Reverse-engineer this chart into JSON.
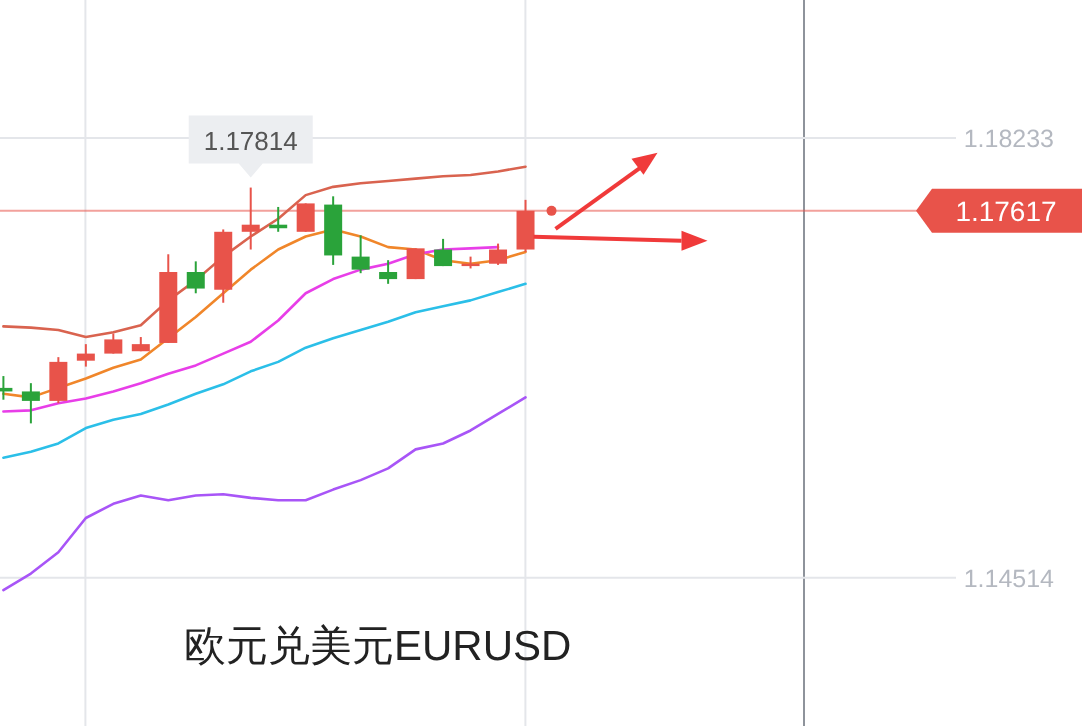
{
  "chart_data": {
    "type": "candlestick",
    "title": "欧元兑美元EURUSD",
    "categories": [
      null,
      null,
      null,
      null,
      null,
      null,
      null,
      null,
      null,
      null,
      null,
      null,
      null,
      null,
      null,
      null,
      null,
      null,
      null,
      null
    ],
    "ohlc": [
      [
        1.1612,
        1.1622,
        1.1602,
        1.1609
      ],
      [
        1.1609,
        1.1616,
        1.1582,
        1.1601
      ],
      [
        1.1601,
        1.1638,
        1.1599,
        1.1634
      ],
      [
        1.1635,
        1.1649,
        1.163,
        1.1641
      ],
      [
        1.1641,
        1.1658,
        1.1641,
        1.1653
      ],
      [
        1.1643,
        1.1655,
        1.1643,
        1.1649
      ],
      [
        1.165,
        1.1725,
        1.165,
        1.171
      ],
      [
        1.171,
        1.1719,
        1.1692,
        1.1696
      ],
      [
        1.1695,
        1.1746,
        1.1684,
        1.1744
      ],
      [
        1.1744,
        1.17814,
        1.1729,
        1.175
      ],
      [
        1.175,
        1.1765,
        1.1744,
        1.1747
      ],
      [
        1.1744,
        1.1768,
        1.1744,
        1.1768
      ],
      [
        1.1767,
        1.1774,
        1.1716,
        1.1724
      ],
      [
        1.1723,
        1.1741,
        1.1709,
        1.1712
      ],
      [
        1.171,
        1.172,
        1.17,
        1.1704
      ],
      [
        1.1704,
        1.173,
        1.1704,
        1.173
      ],
      [
        1.1729,
        1.1738,
        1.1715,
        1.1715
      ],
      [
        1.1715,
        1.1723,
        1.1713,
        1.1717
      ],
      [
        1.1717,
        1.1734,
        1.1716,
        1.1729
      ],
      [
        1.1729,
        1.1771,
        1.1727,
        1.17617
      ]
    ],
    "colors": [
      "#2aa33a",
      "#2aa33a",
      "#e8534a",
      "#e8534a",
      "#e8534a",
      "#e8534a",
      "#e8534a",
      "#2aa33a",
      "#e8534a",
      "#e8534a",
      "#2aa33a",
      "#e8534a",
      "#2aa33a",
      "#2aa33a",
      "#2aa33a",
      "#e8534a",
      "#2aa33a",
      "#e8534a",
      "#e8534a",
      "#e8534a"
    ],
    "series": [
      {
        "type": "line",
        "color": "#d9634f",
        "values": [
          1.1664,
          1.1663,
          1.1661,
          1.1655,
          1.1659,
          1.1665,
          1.1686,
          1.1703,
          1.1723,
          1.174,
          1.1755,
          1.1775,
          1.1782,
          1.1785,
          1.1787,
          1.1789,
          1.1791,
          1.1792,
          1.1795,
          1.1799
        ]
      },
      {
        "type": "line",
        "color": "#f0862a",
        "values": [
          1.1607,
          1.1604,
          null,
          1.162,
          1.1629,
          1.1636,
          null,
          1.1672,
          1.1692,
          1.1712,
          1.1729,
          1.174,
          1.1746,
          1.174,
          1.1731,
          1.1729,
          1.172,
          1.1717,
          1.172,
          1.1727
        ]
      },
      {
        "type": "line",
        "color": "#e83ee8",
        "values": [
          1.1592,
          1.1593,
          1.1599,
          1.1603,
          1.1609,
          1.1616,
          1.1624,
          1.1631,
          1.1641,
          1.1651,
          1.1669,
          1.1692,
          1.1704,
          1.1712,
          1.1717,
          1.1725,
          1.1729,
          1.173,
          1.1731,
          null
        ]
      },
      {
        "type": "line",
        "color": "#2bbfe8",
        "values": [
          1.1553,
          1.1558,
          1.1565,
          1.1578,
          1.1585,
          1.159,
          1.1598,
          1.1607,
          1.1615,
          1.1626,
          1.1634,
          1.1646,
          1.1654,
          1.1661,
          1.1668,
          1.1676,
          1.1681,
          1.1686,
          1.1693,
          1.17
        ]
      },
      {
        "type": "line",
        "color": "#a855f7",
        "values": [
          1.1441,
          1.1455,
          1.1473,
          1.1502,
          1.1514,
          1.1521,
          1.1517,
          1.1521,
          1.1522,
          1.1519,
          1.1517,
          1.1517,
          1.1526,
          1.1534,
          1.1544,
          1.156,
          1.1565,
          1.1576,
          1.159,
          1.1604
        ]
      }
    ],
    "ylim": [
      1.13261,
      1.194
    ],
    "yticks": [
      1.18233,
      1.14514
    ],
    "ref_lines": [
      {
        "axis": "y",
        "value": 1.17617,
        "label": "1.17617",
        "color": "#e8534a"
      }
    ],
    "annotations": [
      {
        "text": "1.17814",
        "y": 1.17814
      }
    ],
    "grid": "y",
    "tick_labels": "y"
  }
}
